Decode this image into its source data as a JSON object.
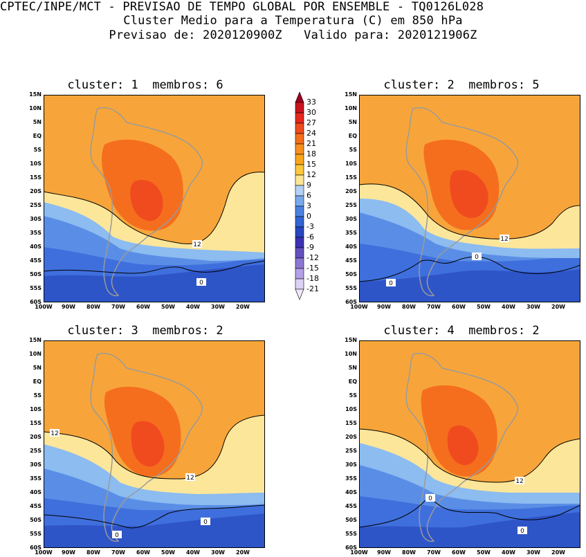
{
  "header": {
    "line1": "CPTEC/INPE/MCT - PREVISAO DE TEMPO GLOBAL POR ENSEMBLE - TQ0126L028",
    "line2": "Cluster Medio para a Temperatura (C) em 850 hPa",
    "line3": "Previsao de: 2020120900Z   Valido para: 2020121906Z"
  },
  "panels": [
    {
      "title": "cluster: 1  membros: 6",
      "contour_labels": [
        "12",
        "0"
      ]
    },
    {
      "title": "cluster: 2  membros: 5",
      "contour_labels": [
        "12",
        "0",
        "0"
      ]
    },
    {
      "title": "cluster: 3  membros: 2",
      "contour_labels": [
        "12",
        "12",
        "0",
        "0"
      ]
    },
    {
      "title": "cluster: 4  membros: 2",
      "contour_labels": [
        "12",
        "0",
        "0"
      ]
    }
  ],
  "lat_ticks": [
    "15N",
    "10N",
    "5N",
    "EQ",
    "5S",
    "10S",
    "15S",
    "20S",
    "25S",
    "30S",
    "35S",
    "40S",
    "45S",
    "50S",
    "55S",
    "60S"
  ],
  "lon_ticks": [
    "100W",
    "90W",
    "80W",
    "70W",
    "60W",
    "50W",
    "40W",
    "30W",
    "20W"
  ],
  "colorbar": {
    "labels": [
      "33",
      "30",
      "27",
      "24",
      "21",
      "18",
      "15",
      "12",
      "9",
      "6",
      "3",
      "0",
      "-3",
      "-6",
      "-9",
      "-12",
      "-15",
      "-18",
      "-21"
    ],
    "colors": [
      "#a0001e",
      "#c8141e",
      "#e6281e",
      "#f04b1e",
      "#f56e1e",
      "#f79020",
      "#faa51e",
      "#fcc83c",
      "#fae696",
      "#b4d2f5",
      "#78aaeb",
      "#4b82e1",
      "#3264d2",
      "#2846be",
      "#3c32b4",
      "#6450be",
      "#8c78d2",
      "#b4a0e6",
      "#dcd2f5",
      "#efe8fa"
    ]
  },
  "colors": {
    "warm_bg": "#f7a53a",
    "hot": "#f56e1e",
    "hotter": "#f04b1e",
    "hottest": "#e6281e",
    "yellow": "#fce69a",
    "lightblue": "#8cbcf0",
    "midblue": "#5a8ee6",
    "blue": "#3f6fdc",
    "deepblue": "#2e55c8",
    "purple": "#4b3cb8",
    "land_border": "#9a9a9a"
  }
}
